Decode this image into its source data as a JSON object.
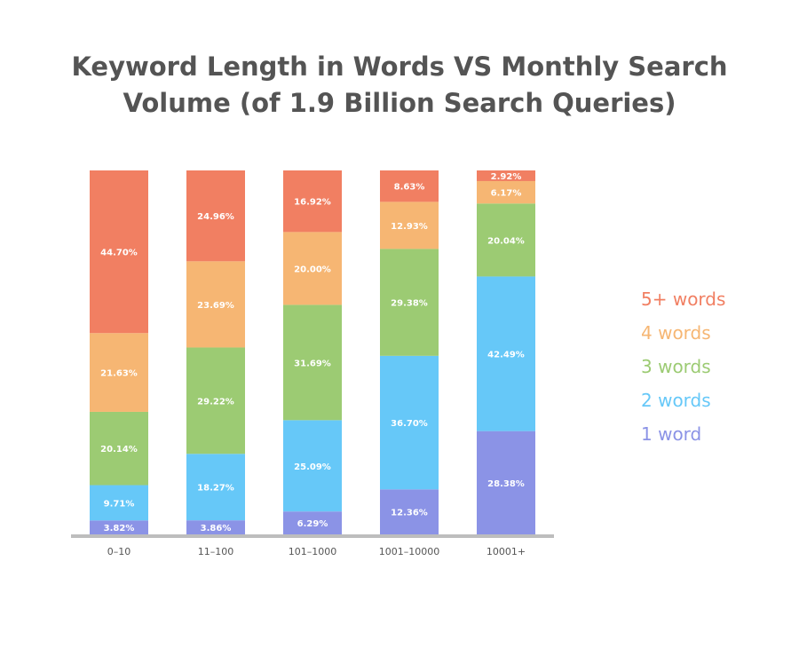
{
  "chart_data": {
    "type": "bar",
    "stacked": true,
    "title": "Keyword Length in Words VS Monthly Search Volume (of 1.9 Billion Search Queries)",
    "xlabel": "",
    "ylabel": "",
    "ylim": [
      0,
      100
    ],
    "categories": [
      "0–10",
      "11–100",
      "101–1000",
      "1001–10000",
      "10001+"
    ],
    "series": [
      {
        "name": "1 word",
        "color": "#8b93e6",
        "values": [
          3.82,
          3.86,
          6.29,
          12.36,
          28.38
        ],
        "labels": [
          "3.82%",
          "3.86%",
          "6.29%",
          "12.36%",
          "28.38%"
        ]
      },
      {
        "name": "2 words",
        "color": "#66c8f8",
        "values": [
          9.71,
          18.27,
          25.09,
          36.7,
          42.49
        ],
        "labels": [
          "9.71%",
          "18.27%",
          "25.09%",
          "36.70%",
          "42.49%"
        ]
      },
      {
        "name": "3 words",
        "color": "#9ccb73",
        "values": [
          20.14,
          29.22,
          31.69,
          29.38,
          20.04
        ],
        "labels": [
          "20.14%",
          "29.22%",
          "31.69%",
          "29.38%",
          "20.04%"
        ]
      },
      {
        "name": "4 words",
        "color": "#f6b673",
        "values": [
          21.63,
          23.69,
          20.0,
          12.93,
          6.17
        ],
        "labels": [
          "21.63%",
          "23.69%",
          "20.00%",
          "12.93%",
          "6.17%"
        ]
      },
      {
        "name": "5+ words",
        "color": "#f17f62",
        "values": [
          44.7,
          24.96,
          16.92,
          8.63,
          2.92
        ],
        "labels": [
          "44.70%",
          "24.96%",
          "16.92%",
          "8.63%",
          "2.92%"
        ]
      }
    ],
    "legend_position": "right",
    "grid": false,
    "colors": {
      "axis": "#bdbdbd",
      "tick_text": "#555555",
      "title": "#545454",
      "label_text": "#ffffff"
    }
  }
}
